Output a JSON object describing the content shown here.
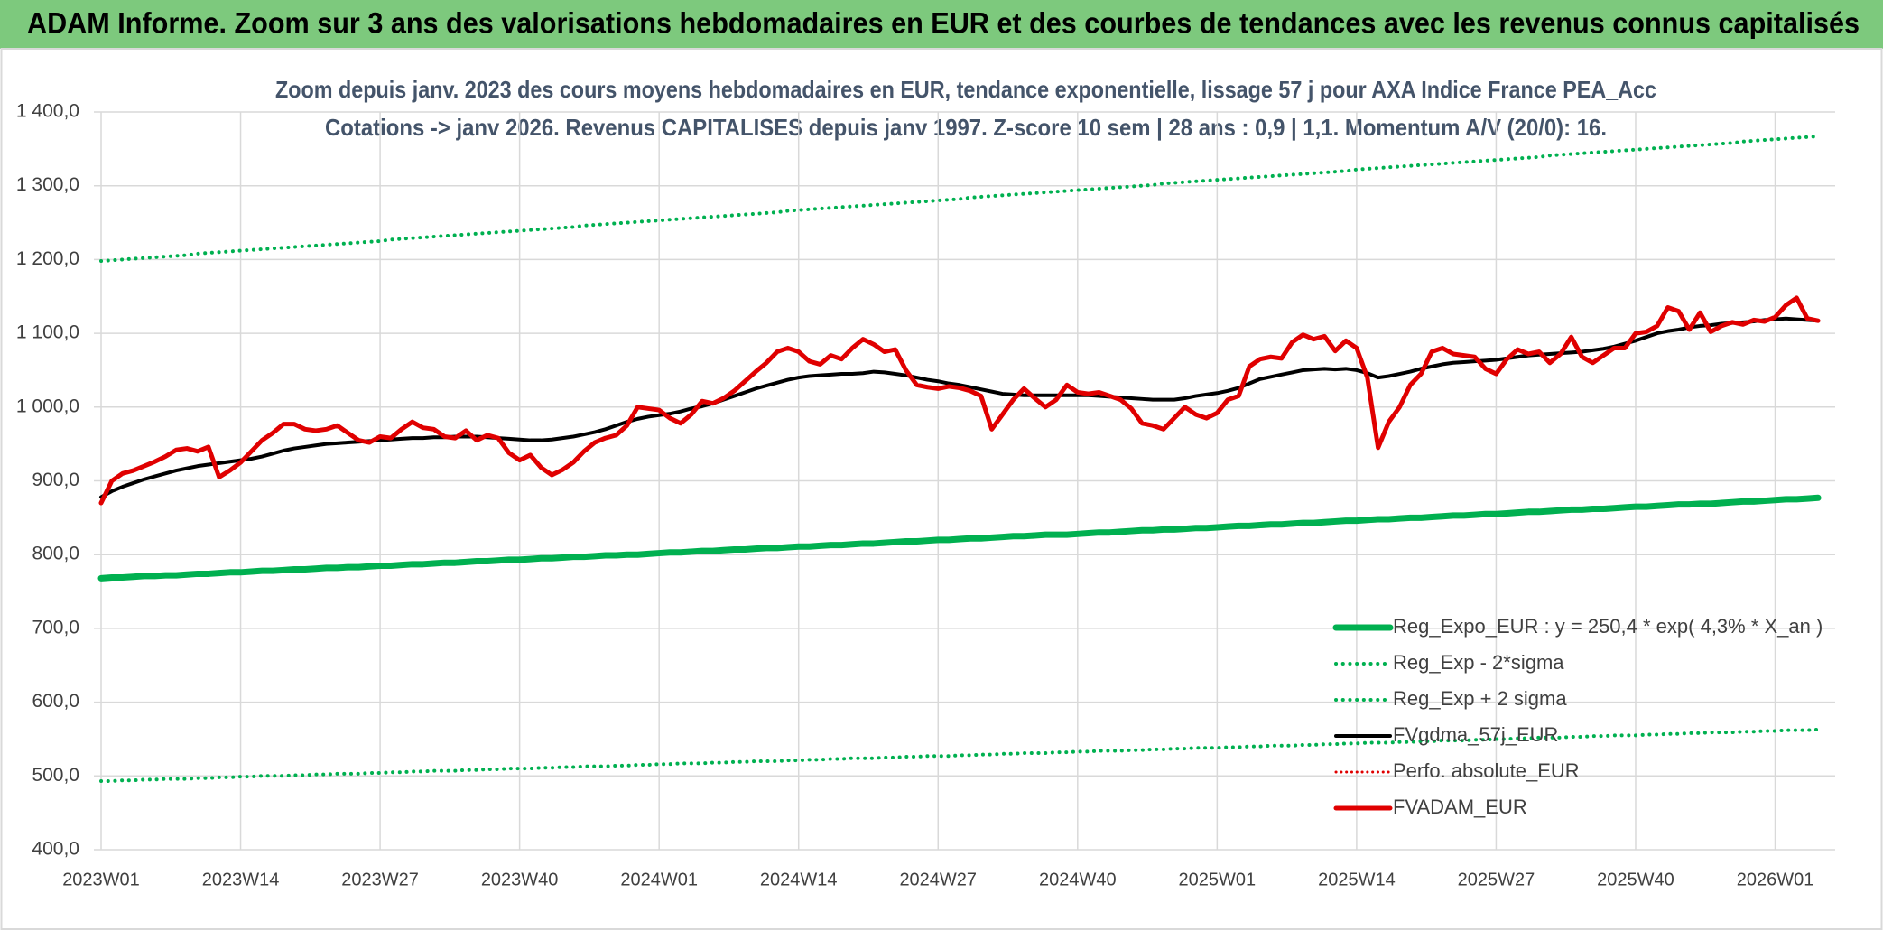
{
  "header": {
    "title": "ADAM Informe. Zoom sur 3 ans des valorisations hebdomadaires en EUR et des courbes de tendances avec les revenus connus capitalisés"
  },
  "chart_data": {
    "type": "line",
    "title": "Zoom depuis janv. 2023 des cours moyens hebdomadaires en EUR, tendance exponentielle, lissage 57 j pour AXA Indice France PEA_Acc",
    "subtitle": "Cotations -> janv 2026. Revenus CAPITALISES depuis janv 1997. Z-score 10 sem | 28 ans : 0,9 | 1,1. Momentum A/V (20/0): 16.",
    "categories": [
      "2023W01",
      null,
      null,
      null,
      null,
      null,
      null,
      null,
      null,
      null,
      null,
      null,
      null,
      "2023W14",
      null,
      null,
      null,
      null,
      null,
      null,
      null,
      null,
      null,
      null,
      null,
      null,
      "2023W27",
      null,
      null,
      null,
      null,
      null,
      null,
      null,
      null,
      null,
      null,
      null,
      null,
      "2023W40",
      null,
      null,
      null,
      null,
      null,
      null,
      null,
      null,
      null,
      null,
      null,
      null,
      "2024W01",
      null,
      null,
      null,
      null,
      null,
      null,
      null,
      null,
      null,
      null,
      null,
      null,
      "2024W14",
      null,
      null,
      null,
      null,
      null,
      null,
      null,
      null,
      null,
      null,
      null,
      null,
      "2024W27",
      null,
      null,
      null,
      null,
      null,
      null,
      null,
      null,
      null,
      null,
      null,
      null,
      "2024W40",
      null,
      null,
      null,
      null,
      null,
      null,
      null,
      null,
      null,
      null,
      null,
      null,
      "2025W01",
      null,
      null,
      null,
      null,
      null,
      null,
      null,
      null,
      null,
      null,
      null,
      null,
      "2025W14",
      null,
      null,
      null,
      null,
      null,
      null,
      null,
      null,
      null,
      null,
      null,
      null,
      "2025W27",
      null,
      null,
      null,
      null,
      null,
      null,
      null,
      null,
      null,
      null,
      null,
      null,
      "2025W40",
      null,
      null,
      null,
      null,
      null,
      null,
      null,
      null,
      null,
      null,
      null,
      null,
      "2026W01",
      null,
      null,
      null,
      null
    ],
    "ylim": [
      400,
      1400
    ],
    "yticks": [
      {
        "value": 400,
        "label": "400,0"
      },
      {
        "value": 500,
        "label": "500,0"
      },
      {
        "value": 600,
        "label": "600,0"
      },
      {
        "value": 700,
        "label": "700,0"
      },
      {
        "value": 800,
        "label": "800,0"
      },
      {
        "value": 900,
        "label": "900,0"
      },
      {
        "value": 1000,
        "label": "1 000,0"
      },
      {
        "value": 1100,
        "label": "1 100,0"
      },
      {
        "value": 1200,
        "label": "1 200,0"
      },
      {
        "value": 1300,
        "label": "1 300,0"
      },
      {
        "value": 1400,
        "label": "1 400,0"
      }
    ],
    "grid": true,
    "legend": "lower right",
    "series": [
      {
        "name": "Reg_Expo_EUR : y = 250,4 * exp( 4,3% *  X_an )",
        "color": "#00b050",
        "style": "solid",
        "width": 7,
        "values": [
          768,
          769,
          769,
          770,
          771,
          771,
          772,
          772,
          773,
          774,
          774,
          775,
          776,
          776,
          777,
          778,
          778,
          779,
          780,
          780,
          781,
          782,
          782,
          783,
          783,
          784,
          785,
          785,
          786,
          787,
          787,
          788,
          789,
          789,
          790,
          791,
          791,
          792,
          793,
          793,
          794,
          795,
          795,
          796,
          797,
          797,
          798,
          799,
          799,
          800,
          800,
          801,
          802,
          803,
          803,
          804,
          805,
          805,
          806,
          807,
          807,
          808,
          809,
          809,
          810,
          811,
          811,
          812,
          813,
          813,
          814,
          815,
          815,
          816,
          817,
          818,
          818,
          819,
          820,
          820,
          821,
          822,
          822,
          823,
          824,
          825,
          825,
          826,
          827,
          827,
          827,
          828,
          829,
          830,
          830,
          831,
          832,
          833,
          833,
          834,
          834,
          835,
          836,
          836,
          837,
          838,
          839,
          839,
          840,
          841,
          841,
          842,
          843,
          843,
          844,
          845,
          846,
          846,
          847,
          848,
          848,
          849,
          850,
          850,
          851,
          852,
          853,
          853,
          854,
          855,
          855,
          856,
          857,
          858,
          858,
          859,
          860,
          861,
          861,
          862,
          862,
          863,
          864,
          865,
          865,
          866,
          867,
          868,
          868,
          869,
          869,
          870,
          871,
          872,
          872,
          873,
          874,
          875,
          875,
          876,
          877
        ]
      },
      {
        "name": "Reg_Exp - 2*sigma",
        "color": "#00b050",
        "style": "dotted",
        "width": 4,
        "values": [
          493,
          493,
          494,
          494,
          495,
          495,
          496,
          496,
          496,
          497,
          497,
          498,
          498,
          499,
          499,
          500,
          500,
          500,
          501,
          501,
          502,
          502,
          503,
          503,
          503,
          504,
          504,
          505,
          505,
          506,
          506,
          507,
          507,
          507,
          508,
          508,
          509,
          509,
          510,
          510,
          510,
          511,
          511,
          512,
          512,
          513,
          513,
          513,
          514,
          514,
          515,
          515,
          516,
          516,
          517,
          517,
          517,
          518,
          518,
          519,
          519,
          520,
          520,
          520,
          521,
          521,
          522,
          522,
          523,
          523,
          524,
          524,
          524,
          525,
          525,
          526,
          526,
          527,
          527,
          527,
          528,
          528,
          529,
          529,
          530,
          530,
          531,
          531,
          531,
          532,
          532,
          533,
          533,
          534,
          534,
          534,
          535,
          535,
          536,
          536,
          537,
          537,
          538,
          538,
          538,
          539,
          539,
          540,
          540,
          541,
          541,
          541,
          542,
          542,
          543,
          543,
          544,
          544,
          545,
          545,
          545,
          546,
          546,
          547,
          547,
          548,
          548,
          548,
          549,
          549,
          550,
          550,
          551,
          551,
          552,
          552,
          552,
          553,
          553,
          554,
          554,
          555,
          555,
          555,
          556,
          556,
          557,
          557,
          558,
          558,
          559,
          559,
          559,
          560,
          560,
          561,
          561,
          562,
          562,
          562,
          563
        ]
      },
      {
        "name": "Reg_Exp + 2 sigma",
        "color": "#00b050",
        "style": "dotted",
        "width": 4,
        "values": [
          1198,
          1199,
          1200,
          1201,
          1202,
          1203,
          1204,
          1205,
          1206,
          1208,
          1209,
          1210,
          1211,
          1212,
          1213,
          1214,
          1215,
          1216,
          1217,
          1218,
          1219,
          1220,
          1221,
          1222,
          1223,
          1224,
          1225,
          1227,
          1228,
          1229,
          1230,
          1231,
          1232,
          1233,
          1234,
          1235,
          1236,
          1237,
          1238,
          1239,
          1240,
          1241,
          1242,
          1243,
          1244,
          1246,
          1247,
          1248,
          1249,
          1250,
          1251,
          1252,
          1253,
          1254,
          1255,
          1256,
          1257,
          1258,
          1259,
          1260,
          1261,
          1262,
          1263,
          1264,
          1266,
          1267,
          1268,
          1269,
          1270,
          1271,
          1272,
          1273,
          1274,
          1275,
          1276,
          1277,
          1278,
          1279,
          1280,
          1281,
          1282,
          1284,
          1285,
          1286,
          1287,
          1288,
          1289,
          1290,
          1291,
          1292,
          1293,
          1294,
          1295,
          1296,
          1297,
          1298,
          1299,
          1300,
          1301,
          1303,
          1304,
          1305,
          1306,
          1307,
          1308,
          1309,
          1310,
          1311,
          1312,
          1313,
          1314,
          1315,
          1316,
          1317,
          1318,
          1319,
          1320,
          1322,
          1323,
          1324,
          1325,
          1326,
          1327,
          1328,
          1329,
          1330,
          1331,
          1332,
          1333,
          1334,
          1335,
          1336,
          1337,
          1338,
          1339,
          1341,
          1342,
          1343,
          1344,
          1345,
          1346,
          1347,
          1348,
          1349,
          1350,
          1351,
          1352,
          1353,
          1354,
          1355,
          1356,
          1357,
          1358,
          1360,
          1361,
          1362,
          1363,
          1364,
          1365,
          1366,
          1367
        ]
      },
      {
        "name": "FVgdma_57j_EUR",
        "color": "#000000",
        "style": "solid",
        "width": 4,
        "values": [
          878,
          886,
          892,
          897,
          902,
          906,
          910,
          914,
          917,
          920,
          922,
          924,
          926,
          928,
          930,
          933,
          937,
          941,
          944,
          946,
          948,
          950,
          951,
          952,
          953,
          954,
          955,
          956,
          957,
          958,
          958,
          959,
          959,
          960,
          960,
          960,
          959,
          958,
          957,
          956,
          955,
          955,
          956,
          958,
          960,
          963,
          966,
          970,
          975,
          980,
          984,
          987,
          989,
          991,
          994,
          998,
          1001,
          1005,
          1010,
          1015,
          1020,
          1025,
          1029,
          1033,
          1037,
          1040,
          1042,
          1043,
          1044,
          1045,
          1045,
          1046,
          1048,
          1047,
          1045,
          1043,
          1040,
          1037,
          1035,
          1032,
          1030,
          1027,
          1024,
          1021,
          1018,
          1017,
          1016,
          1016,
          1016,
          1016,
          1016,
          1016,
          1016,
          1015,
          1014,
          1013,
          1012,
          1011,
          1010,
          1010,
          1010,
          1012,
          1015,
          1017,
          1019,
          1022,
          1026,
          1032,
          1038,
          1041,
          1044,
          1047,
          1050,
          1051,
          1052,
          1051,
          1052,
          1050,
          1046,
          1040,
          1042,
          1045,
          1048,
          1052,
          1055,
          1058,
          1060,
          1061,
          1062,
          1063,
          1064,
          1066,
          1068,
          1070,
          1071,
          1072,
          1073,
          1074,
          1075,
          1077,
          1079,
          1082,
          1086,
          1090,
          1095,
          1100,
          1103,
          1105,
          1108,
          1110,
          1111,
          1113,
          1114,
          1115,
          1116,
          1118,
          1119,
          1120,
          1119,
          1118,
          1117
        ]
      },
      {
        "name": "Perfo. absolute_EUR",
        "color": "#e00000",
        "style": "dotted",
        "width": 3,
        "values": [
          870,
          900,
          910,
          914,
          920,
          926,
          933,
          942,
          944,
          940,
          946,
          905,
          914,
          925,
          940,
          955,
          965,
          977,
          977,
          970,
          968,
          970,
          975,
          965,
          955,
          952,
          960,
          958,
          970,
          980,
          972,
          970,
          960,
          958,
          968,
          955,
          962,
          958,
          938,
          928,
          935,
          918,
          908,
          915,
          925,
          940,
          952,
          958,
          962,
          975,
          1000,
          998,
          996,
          985,
          978,
          990,
          1008,
          1005,
          1012,
          1022,
          1035,
          1048,
          1060,
          1075,
          1080,
          1075,
          1062,
          1058,
          1070,
          1065,
          1080,
          1092,
          1085,
          1075,
          1078,
          1050,
          1030,
          1027,
          1025,
          1028,
          1026,
          1022,
          1015,
          970,
          990,
          1010,
          1025,
          1012,
          1000,
          1010,
          1030,
          1020,
          1018,
          1020,
          1015,
          1010,
          998,
          978,
          975,
          970,
          985,
          1000,
          990,
          985,
          992,
          1010,
          1015,
          1055,
          1065,
          1068,
          1066,
          1088,
          1098,
          1092,
          1096,
          1076,
          1090,
          1080,
          1040,
          945,
          980,
          1000,
          1030,
          1045,
          1075,
          1080,
          1072,
          1070,
          1068,
          1052,
          1045,
          1065,
          1078,
          1072,
          1075,
          1060,
          1072,
          1095,
          1068,
          1060,
          1070,
          1080,
          1080,
          1100,
          1102,
          1110,
          1135,
          1130,
          1105,
          1128,
          1102,
          1110,
          1115,
          1112,
          1118,
          1116,
          1122,
          1138,
          1148,
          1120,
          1117
        ]
      },
      {
        "name": "FVADAM_EUR",
        "color": "#e00000",
        "style": "solid",
        "width": 5,
        "values": [
          870,
          900,
          910,
          914,
          920,
          926,
          933,
          942,
          944,
          940,
          946,
          905,
          914,
          925,
          940,
          955,
          965,
          977,
          977,
          970,
          968,
          970,
          975,
          965,
          955,
          952,
          960,
          958,
          970,
          980,
          972,
          970,
          960,
          958,
          968,
          955,
          962,
          958,
          938,
          928,
          935,
          918,
          908,
          915,
          925,
          940,
          952,
          958,
          962,
          975,
          1000,
          998,
          996,
          985,
          978,
          990,
          1008,
          1005,
          1012,
          1022,
          1035,
          1048,
          1060,
          1075,
          1080,
          1075,
          1062,
          1058,
          1070,
          1065,
          1080,
          1092,
          1085,
          1075,
          1078,
          1050,
          1030,
          1027,
          1025,
          1028,
          1026,
          1022,
          1015,
          970,
          990,
          1010,
          1025,
          1012,
          1000,
          1010,
          1030,
          1020,
          1018,
          1020,
          1015,
          1010,
          998,
          978,
          975,
          970,
          985,
          1000,
          990,
          985,
          992,
          1010,
          1015,
          1055,
          1065,
          1068,
          1066,
          1088,
          1098,
          1092,
          1096,
          1076,
          1090,
          1080,
          1040,
          945,
          980,
          1000,
          1030,
          1045,
          1075,
          1080,
          1072,
          1070,
          1068,
          1052,
          1045,
          1065,
          1078,
          1072,
          1075,
          1060,
          1072,
          1095,
          1068,
          1060,
          1070,
          1080,
          1080,
          1100,
          1102,
          1110,
          1135,
          1130,
          1105,
          1128,
          1102,
          1110,
          1115,
          1112,
          1118,
          1116,
          1122,
          1138,
          1148,
          1120,
          1117
        ]
      }
    ]
  }
}
